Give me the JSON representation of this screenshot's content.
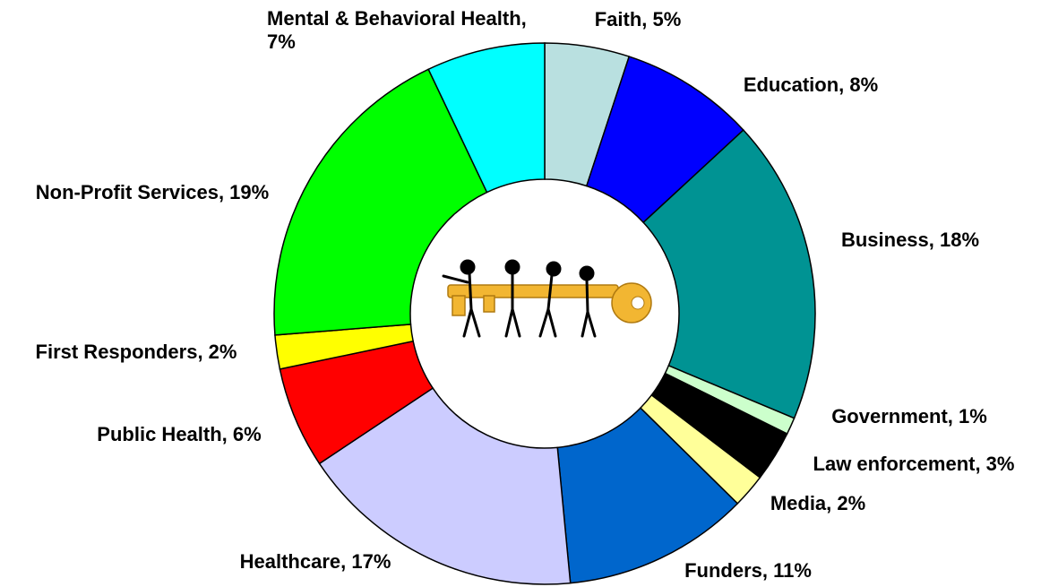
{
  "chart_data": {
    "type": "donut",
    "value_labels": [
      "Faith, 5%",
      "Education, 8%",
      "Business, 18%",
      "Government, 1%",
      "Law enforcement, 3%",
      "Media, 2%",
      "Funders, 11%",
      "Healthcare, 17%",
      "Public Health, 6%",
      "First Responders, 2%",
      "Non-Profit Services, 19%",
      "Mental & Behavioral Health, 7%"
    ],
    "values": [
      5,
      8,
      18,
      1,
      3,
      2,
      11,
      17,
      6,
      2,
      19,
      7
    ],
    "colors": [
      "#b9e0e0",
      "#0000ff",
      "#009393",
      "#ccffcc",
      "#000000",
      "#ffff99",
      "#0066cc",
      "#ccccff",
      "#ff0000",
      "#ffff00",
      "#00ff00",
      "#00ffff"
    ]
  }
}
